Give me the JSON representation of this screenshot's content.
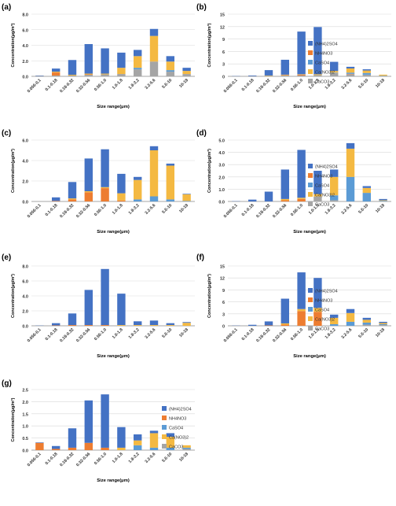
{
  "figure": {
    "legend_entries": [
      {
        "name": "(NH4)2SO4",
        "color": "#4472C4"
      },
      {
        "name": "NH4NO3",
        "color": "#ED7D31"
      },
      {
        "name": "CaSO4",
        "color": "#5B9BD5"
      },
      {
        "name": "Ca(NO3)2",
        "color": "#F4B942"
      },
      {
        "name": "CaCO3",
        "color": "#A5A5A5"
      }
    ]
  },
  "chart_data": [
    {
      "panel": "(a)",
      "type": "bar",
      "stacked": true,
      "xlabel": "Size range(μm)",
      "ylabel": "Concentration(μg/m³)",
      "ylim": [
        0,
        8
      ],
      "yticks": [
        "0.0",
        "2.0",
        "4.0",
        "6.0",
        "8.0"
      ],
      "categories": [
        "0.056-0.1",
        "0.1-0.18",
        "0.18-0.32",
        "0.32-0.56",
        "0.56-1.0",
        "1.0-1.8",
        "1.8-3.2",
        "3.2-5.6",
        "5.6-10",
        "10-18"
      ],
      "legend": false,
      "series": [
        {
          "values": [
            0.05,
            0.1,
            0.1,
            0.2,
            0.25,
            0.3,
            0.9,
            1.9,
            0.6,
            0.3
          ]
        },
        {
          "values": [
            0.0,
            0.4,
            0.0,
            0.05,
            0.0,
            0.0,
            0.0,
            0.0,
            0.0,
            0.0
          ]
        },
        {
          "values": [
            0.0,
            0.0,
            0.0,
            0.0,
            0.0,
            0.0,
            0.2,
            0.0,
            0.2,
            0.0
          ]
        },
        {
          "values": [
            0.0,
            0.1,
            0.1,
            0.1,
            0.1,
            0.8,
            1.5,
            3.3,
            1.1,
            0.4
          ]
        },
        {
          "values": [
            0.05,
            0.4,
            1.9,
            3.8,
            3.25,
            1.95,
            0.8,
            0.9,
            0.7,
            0.4
          ]
        }
      ]
    },
    {
      "panel": "(b)",
      "type": "bar",
      "stacked": true,
      "xlabel": "Size range(μm)",
      "ylabel": "Concentration(μg/m³)",
      "ylim": [
        0,
        15
      ],
      "yticks": [
        "0",
        "3",
        "6",
        "9",
        "12",
        "15"
      ],
      "categories": [
        "0.056-0.1",
        "0.1-0.18",
        "0.18-0.32",
        "0.32-0.56",
        "0.56-1.0",
        "1.0-1.8",
        "1.8-3.2",
        "3.2-5.6",
        "5.6-10",
        "10-18"
      ],
      "legend": true,
      "series": [
        {
          "values": [
            0.05,
            0.05,
            0.1,
            0.2,
            0.2,
            0.3,
            0.8,
            0.5,
            0.4,
            0.05
          ]
        },
        {
          "values": [
            0.0,
            0.0,
            0.0,
            0.1,
            0.2,
            0.0,
            0.0,
            0.1,
            0.0,
            0.0
          ]
        },
        {
          "values": [
            0.0,
            0.0,
            0.0,
            0.0,
            0.0,
            0.0,
            0.1,
            0.3,
            0.4,
            0.1
          ]
        },
        {
          "values": [
            0.0,
            0.0,
            0.1,
            0.1,
            0.1,
            0.2,
            0.4,
            1.0,
            0.6,
            0.25
          ]
        },
        {
          "values": [
            0.05,
            0.15,
            1.3,
            3.6,
            10.3,
            11.4,
            2.2,
            0.4,
            0.3,
            0.0
          ]
        }
      ]
    },
    {
      "panel": "(c)",
      "type": "bar",
      "stacked": true,
      "xlabel": "Size range(μm)",
      "ylabel": "Concentration(μg/m³)",
      "ylim": [
        0,
        6
      ],
      "yticks": [
        "0.0",
        "2.0",
        "4.0",
        "6.0"
      ],
      "categories": [
        "0.056-0.1",
        "0.1-0.18",
        "0.18-0.32",
        "0.32-0.56",
        "0.56-1.0",
        "1.0-1.8",
        "1.8-3.2",
        "3.2-5.6",
        "5.6-10",
        "10-18"
      ],
      "legend": false,
      "series": [
        {
          "values": [
            0.0,
            0.0,
            0.0,
            0.0,
            0.0,
            0.0,
            0.0,
            0.0,
            0.0,
            0.0
          ]
        },
        {
          "values": [
            0.0,
            0.05,
            0.2,
            0.9,
            1.3,
            0.1,
            0.0,
            0.0,
            0.0,
            0.0
          ]
        },
        {
          "values": [
            0.0,
            0.0,
            0.0,
            0.0,
            0.0,
            0.0,
            0.2,
            0.5,
            0.2,
            0.05
          ]
        },
        {
          "values": [
            0.0,
            0.0,
            0.1,
            0.1,
            0.1,
            0.7,
            1.9,
            4.5,
            3.3,
            0.65
          ]
        },
        {
          "values": [
            0.0,
            0.35,
            1.6,
            3.2,
            3.7,
            1.9,
            0.3,
            0.4,
            0.2,
            0.05
          ]
        }
      ]
    },
    {
      "panel": "(d)",
      "type": "bar",
      "stacked": true,
      "xlabel": "Size range(μm)",
      "ylabel": "Concentration(μg/m³)",
      "ylim": [
        0,
        5
      ],
      "yticks": [
        "0.0",
        "1.0",
        "2.0",
        "3.0",
        "4.0",
        "5.0"
      ],
      "categories": [
        "0.056-0.1",
        "0.1-0.18",
        "0.18-0.32",
        "0.32-0.56",
        "0.56-1.0",
        "1.0-1.8",
        "1.8-3.2",
        "3.2-5.6",
        "5.6-10",
        "10-18"
      ],
      "legend": true,
      "series": [
        {
          "values": [
            0.0,
            0.0,
            0.0,
            0.0,
            0.0,
            0.4,
            0.1,
            0.0,
            0.0,
            0.0
          ]
        },
        {
          "values": [
            0.0,
            0.0,
            0.0,
            0.1,
            0.2,
            0.0,
            0.0,
            0.0,
            0.0,
            0.0
          ]
        },
        {
          "values": [
            0.0,
            0.0,
            0.0,
            0.0,
            0.0,
            0.0,
            0.4,
            2.0,
            0.7,
            0.05
          ]
        },
        {
          "values": [
            0.0,
            0.0,
            0.0,
            0.1,
            0.1,
            0.2,
            1.5,
            2.3,
            0.4,
            0.05
          ]
        },
        {
          "values": [
            0.02,
            0.15,
            0.8,
            2.4,
            3.9,
            1.9,
            0.6,
            0.45,
            0.15,
            0.1
          ]
        }
      ]
    },
    {
      "panel": "(e)",
      "type": "bar",
      "stacked": true,
      "xlabel": "Size range(μm)",
      "ylabel": "Concentration(μg/m³)",
      "ylim": [
        0,
        8
      ],
      "yticks": [
        "0.0",
        "2.0",
        "4.0",
        "6.0",
        "8.0"
      ],
      "categories": [
        "0.056-0.1",
        "0.1-0.18",
        "0.18-0.32",
        "0.32-0.56",
        "0.56-1.0",
        "1.0-1.8",
        "1.8-3.2",
        "3.2-5.6",
        "5.6-10",
        "10-18"
      ],
      "legend": false,
      "series": [
        {
          "values": [
            0.0,
            0.0,
            0.0,
            0.0,
            0.0,
            0.0,
            0.0,
            0.0,
            0.0,
            0.0
          ]
        },
        {
          "values": [
            0.0,
            0.05,
            0.1,
            0.1,
            0.1,
            0.0,
            0.0,
            0.0,
            0.0,
            0.0
          ]
        },
        {
          "values": [
            0.0,
            0.0,
            0.0,
            0.0,
            0.0,
            0.0,
            0.0,
            0.0,
            0.0,
            0.0
          ]
        },
        {
          "values": [
            0.0,
            0.0,
            0.0,
            0.0,
            0.0,
            0.1,
            0.1,
            0.1,
            0.1,
            0.4
          ]
        },
        {
          "values": [
            0.03,
            0.3,
            1.55,
            4.7,
            7.5,
            4.2,
            0.5,
            0.6,
            0.25,
            0.1
          ]
        }
      ]
    },
    {
      "panel": "(f)",
      "type": "bar",
      "stacked": true,
      "xlabel": "Size range(μm)",
      "ylabel": "Concentration(μg/m³)",
      "ylim": [
        0,
        15
      ],
      "yticks": [
        "0",
        "3",
        "6",
        "9",
        "12",
        "15"
      ],
      "categories": [
        "0.056-0.1",
        "0.1-0.18",
        "0.18-0.32",
        "0.32-0.56",
        "0.56-1.0",
        "1.0-1.8",
        "1.8-3.2",
        "3.2-5.6",
        "5.6-10",
        "10-18"
      ],
      "legend": true,
      "series": [
        {
          "values": [
            0.0,
            0.0,
            0.0,
            0.0,
            0.0,
            0.0,
            0.0,
            0.0,
            0.3,
            0.2
          ]
        },
        {
          "values": [
            0.0,
            0.0,
            0.1,
            0.3,
            3.7,
            3.5,
            0.0,
            0.0,
            0.0,
            0.0
          ]
        },
        {
          "values": [
            0.0,
            0.0,
            0.0,
            0.0,
            0.0,
            0.0,
            0.4,
            1.0,
            0.5,
            0.2
          ]
        },
        {
          "values": [
            0.0,
            0.0,
            0.0,
            0.3,
            0.5,
            1.0,
            1.6,
            2.2,
            0.7,
            0.3
          ]
        },
        {
          "values": [
            0.05,
            0.25,
            1.0,
            6.2,
            9.2,
            7.5,
            0.8,
            1.0,
            0.5,
            0.3
          ]
        }
      ]
    },
    {
      "panel": "(g)",
      "type": "bar",
      "stacked": true,
      "xlabel": "Size range(μm)",
      "ylabel": "Concentration(μg/m³)",
      "ylim": [
        0,
        2.5
      ],
      "yticks": [
        "0.0",
        "0.5",
        "1.0",
        "1.5",
        "2.0",
        "2.5"
      ],
      "categories": [
        "0.056-0.1",
        "0.1-0.18",
        "0.18-0.32",
        "0.32-0.56",
        "0.56-1.0",
        "1.0-1.8",
        "1.8-3.2",
        "3.2-5.6",
        "5.6-10",
        "10-18"
      ],
      "legend": true,
      "series": [
        {
          "values": [
            0.0,
            0.0,
            0.0,
            0.0,
            0.0,
            0.0,
            0.0,
            0.0,
            0.0,
            0.05
          ]
        },
        {
          "values": [
            0.3,
            0.05,
            0.1,
            0.3,
            0.1,
            0.0,
            0.0,
            0.0,
            0.0,
            0.0
          ]
        },
        {
          "values": [
            0.0,
            0.0,
            0.0,
            0.0,
            0.0,
            0.0,
            0.2,
            0.1,
            0.1,
            0.05
          ]
        },
        {
          "values": [
            0.0,
            0.0,
            0.0,
            0.0,
            0.0,
            0.1,
            0.2,
            0.6,
            0.45,
            0.1
          ]
        },
        {
          "values": [
            0.02,
            0.12,
            0.8,
            1.75,
            2.2,
            0.85,
            0.25,
            0.1,
            0.15,
            0.0
          ]
        }
      ]
    }
  ]
}
